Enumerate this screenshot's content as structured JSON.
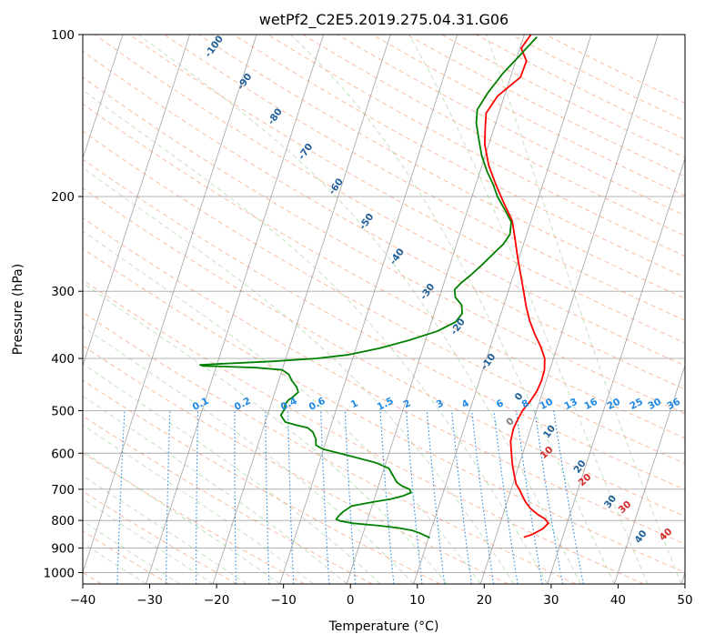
{
  "chart_data": {
    "type": "line",
    "title": "wetPf2_C2E5.2019.275.04.31.G06",
    "xlabel": "Temperature (°C)",
    "ylabel": "Pressure (hPa)",
    "xlim": [
      -40,
      50
    ],
    "ylim": [
      1050,
      100
    ],
    "y_scale": "log",
    "x_ticks": [
      "−40",
      "−30",
      "−20",
      "−10",
      "0",
      "10",
      "20",
      "30",
      "40",
      "50"
    ],
    "y_ticks": [
      "100",
      "200",
      "300",
      "400",
      "500",
      "600",
      "700",
      "800",
      "900",
      "1000"
    ],
    "grid": true,
    "series": [
      {
        "color": "#ff0000",
        "points": [
          [
            24.2,
            860
          ],
          [
            25.3,
            850
          ],
          [
            26.6,
            830
          ],
          [
            27.2,
            810
          ],
          [
            26.5,
            795
          ],
          [
            25.2,
            780
          ],
          [
            23.8,
            760
          ],
          [
            22.8,
            740
          ],
          [
            22.0,
            720
          ],
          [
            21.2,
            700
          ],
          [
            20.5,
            685
          ],
          [
            19.8,
            660
          ],
          [
            19.0,
            630
          ],
          [
            18.3,
            600
          ],
          [
            17.6,
            570
          ],
          [
            17.4,
            540
          ],
          [
            17.6,
            520
          ],
          [
            17.9,
            500
          ],
          [
            18.6,
            480
          ],
          [
            19.1,
            460
          ],
          [
            19.3,
            440
          ],
          [
            19.2,
            420
          ],
          [
            18.7,
            400
          ],
          [
            17.5,
            380
          ],
          [
            16.0,
            360
          ],
          [
            14.6,
            340
          ],
          [
            13.4,
            320
          ],
          [
            12.3,
            300
          ],
          [
            11.1,
            280
          ],
          [
            9.8,
            260
          ],
          [
            8.5,
            240
          ],
          [
            7.2,
            222
          ],
          [
            5.0,
            205
          ],
          [
            3.0,
            190
          ],
          [
            1.0,
            175
          ],
          [
            -0.6,
            160
          ],
          [
            -1.4,
            148
          ],
          [
            -1.9,
            140
          ],
          [
            -1.0,
            130
          ],
          [
            1.5,
            120
          ],
          [
            1.6,
            112
          ],
          [
            0.2,
            106
          ],
          [
            1.0,
            100
          ]
        ]
      },
      {
        "color": "#008000",
        "points": [
          [
            10.2,
            862
          ],
          [
            9.5,
            855
          ],
          [
            8.5,
            845
          ],
          [
            7.2,
            835
          ],
          [
            5.0,
            826
          ],
          [
            2.0,
            818
          ],
          [
            -2.0,
            810
          ],
          [
            -4.0,
            802
          ],
          [
            -4.7,
            796
          ],
          [
            -4.5,
            785
          ],
          [
            -4.0,
            770
          ],
          [
            -3.0,
            752
          ],
          [
            -0.2,
            740
          ],
          [
            2.5,
            730
          ],
          [
            4.2,
            720
          ],
          [
            5.2,
            710
          ],
          [
            4.8,
            700
          ],
          [
            3.5,
            690
          ],
          [
            2.6,
            680
          ],
          [
            1.9,
            665
          ],
          [
            0.7,
            640
          ],
          [
            -1.5,
            625
          ],
          [
            -5.0,
            610
          ],
          [
            -10.0,
            590
          ],
          [
            -11.3,
            580
          ],
          [
            -11.6,
            565
          ],
          [
            -12.4,
            548
          ],
          [
            -13.4,
            538
          ],
          [
            -15.2,
            532
          ],
          [
            -17.0,
            525
          ],
          [
            -18.0,
            510
          ],
          [
            -17.7,
            495
          ],
          [
            -17.9,
            488
          ],
          [
            -17.6,
            478
          ],
          [
            -17.1,
            472
          ],
          [
            -16.5,
            462
          ],
          [
            -17.0,
            452
          ],
          [
            -18.0,
            440
          ],
          [
            -18.8,
            428
          ],
          [
            -20.0,
            420
          ],
          [
            -24.0,
            416
          ],
          [
            -29.0,
            414
          ],
          [
            -32.0,
            413
          ],
          [
            -32.5,
            411
          ],
          [
            -29.0,
            409
          ],
          [
            -22.0,
            405
          ],
          [
            -15.5,
            400
          ],
          [
            -11.0,
            394
          ],
          [
            -6.5,
            383
          ],
          [
            -2.5,
            370
          ],
          [
            1.3,
            356
          ],
          [
            3.6,
            342
          ],
          [
            4.2,
            330
          ],
          [
            3.7,
            318
          ],
          [
            2.4,
            308
          ],
          [
            1.9,
            298
          ],
          [
            2.5,
            290
          ],
          [
            3.6,
            280
          ],
          [
            4.8,
            268
          ],
          [
            6.0,
            255
          ],
          [
            7.0,
            245
          ],
          [
            7.5,
            235
          ],
          [
            7.1,
            223
          ],
          [
            5.6,
            212
          ],
          [
            3.8,
            200
          ],
          [
            2.6,
            190
          ],
          [
            1.1,
            180
          ],
          [
            -0.5,
            168
          ],
          [
            -1.8,
            156
          ],
          [
            -2.9,
            146
          ],
          [
            -3.4,
            138
          ],
          [
            -2.6,
            128
          ],
          [
            -1.3,
            118
          ],
          [
            0.2,
            110
          ],
          [
            2.0,
            101
          ]
        ]
      }
    ],
    "dry_adiabat_labels": [
      "-100",
      "-90",
      "-80",
      "-70",
      "-60",
      "-50",
      "-40",
      "-30",
      "-20",
      "-10",
      "0",
      "10",
      "20",
      "30",
      "40"
    ],
    "mixing_ratio_labels": [
      "0.1",
      "0.2",
      "0.4",
      "0.6",
      "1",
      "1.5",
      "2",
      "3",
      "4",
      "6",
      "8",
      "10",
      "13",
      "16",
      "20",
      "25",
      "30",
      "36"
    ],
    "colors": {
      "dry_adiabat": "#f4a582",
      "moist_adiabat": "#a6d7a0",
      "mixing_ratio": "#1e88e5",
      "isotherm": "#999999",
      "dry_label": "#1f5f9a",
      "moist_label_hot": "#d62728",
      "moist_label_zero": "#7f7f7f",
      "mixing_label": "#1e88e5"
    }
  }
}
